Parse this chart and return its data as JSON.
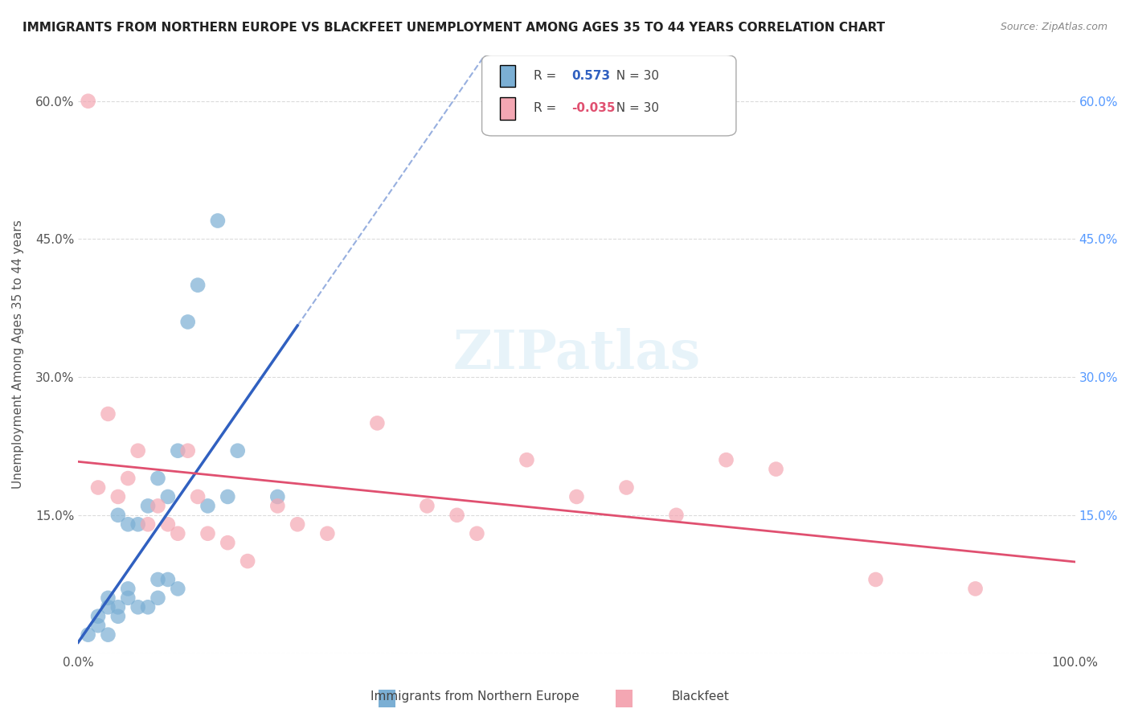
{
  "title": "IMMIGRANTS FROM NORTHERN EUROPE VS BLACKFEET UNEMPLOYMENT AMONG AGES 35 TO 44 YEARS CORRELATION CHART",
  "source": "Source: ZipAtlas.com",
  "ylabel": "Unemployment Among Ages 35 to 44 years",
  "xlabel": "",
  "xlim": [
    0,
    1.0
  ],
  "ylim": [
    0,
    0.65
  ],
  "xticks": [
    0.0,
    0.2,
    0.4,
    0.6,
    0.8,
    1.0
  ],
  "xticklabels": [
    "0.0%",
    "",
    "",
    "",
    "",
    "100.0%"
  ],
  "yticks": [
    0.0,
    0.15,
    0.3,
    0.45,
    0.6
  ],
  "yticklabels": [
    "",
    "15.0%",
    "30.0%",
    "45.0%",
    "60.0%"
  ],
  "blue_R": "0.573",
  "blue_N": "30",
  "pink_R": "-0.035",
  "pink_N": "30",
  "legend_label1": "Immigrants from Northern Europe",
  "legend_label2": "Blackfeet",
  "blue_color": "#7bafd4",
  "pink_color": "#f4a7b3",
  "blue_line_color": "#3060c0",
  "pink_line_color": "#e05070",
  "watermark": "ZIPatlas",
  "blue_scatter_x": [
    0.01,
    0.02,
    0.02,
    0.03,
    0.03,
    0.03,
    0.04,
    0.04,
    0.04,
    0.05,
    0.05,
    0.05,
    0.06,
    0.06,
    0.07,
    0.07,
    0.08,
    0.08,
    0.08,
    0.09,
    0.09,
    0.1,
    0.1,
    0.11,
    0.12,
    0.13,
    0.14,
    0.15,
    0.16,
    0.2
  ],
  "blue_scatter_y": [
    0.02,
    0.03,
    0.04,
    0.05,
    0.06,
    0.02,
    0.04,
    0.05,
    0.15,
    0.06,
    0.07,
    0.14,
    0.05,
    0.14,
    0.05,
    0.16,
    0.06,
    0.08,
    0.19,
    0.08,
    0.17,
    0.07,
    0.22,
    0.36,
    0.4,
    0.16,
    0.47,
    0.17,
    0.22,
    0.17
  ],
  "pink_scatter_x": [
    0.01,
    0.02,
    0.03,
    0.04,
    0.05,
    0.06,
    0.07,
    0.08,
    0.09,
    0.1,
    0.11,
    0.12,
    0.13,
    0.15,
    0.17,
    0.2,
    0.22,
    0.25,
    0.3,
    0.35,
    0.38,
    0.4,
    0.45,
    0.5,
    0.55,
    0.6,
    0.65,
    0.7,
    0.8,
    0.9
  ],
  "pink_scatter_y": [
    0.6,
    0.18,
    0.26,
    0.17,
    0.19,
    0.22,
    0.14,
    0.16,
    0.14,
    0.13,
    0.22,
    0.17,
    0.13,
    0.12,
    0.1,
    0.16,
    0.14,
    0.13,
    0.25,
    0.16,
    0.15,
    0.13,
    0.21,
    0.17,
    0.18,
    0.15,
    0.21,
    0.2,
    0.08,
    0.07
  ],
  "background_color": "#ffffff",
  "grid_color": "#cccccc"
}
